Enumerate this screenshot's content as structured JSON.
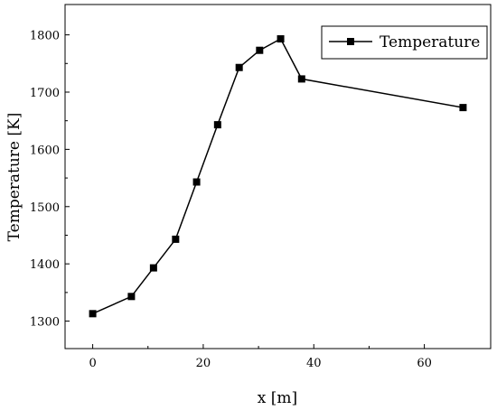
{
  "chart_data": {
    "type": "line",
    "title": "",
    "xlabel": "x [m]",
    "ylabel": "Temperature [K]",
    "xlim": [
      -5,
      72
    ],
    "ylim": [
      1252,
      1853
    ],
    "xticks": [
      0,
      20,
      40,
      60
    ],
    "yticks": [
      1300,
      1400,
      1500,
      1600,
      1700,
      1800
    ],
    "grid": false,
    "legend_position": "top-right",
    "series": [
      {
        "name": "Temperature",
        "marker": "square",
        "color": "#000000",
        "x": [
          0,
          7,
          11,
          15,
          18.8,
          22.6,
          26.5,
          30.2,
          34,
          37.8,
          67
        ],
        "y": [
          1313,
          1343,
          1393,
          1443,
          1543,
          1643,
          1743,
          1773,
          1793,
          1723,
          1673
        ]
      }
    ]
  }
}
